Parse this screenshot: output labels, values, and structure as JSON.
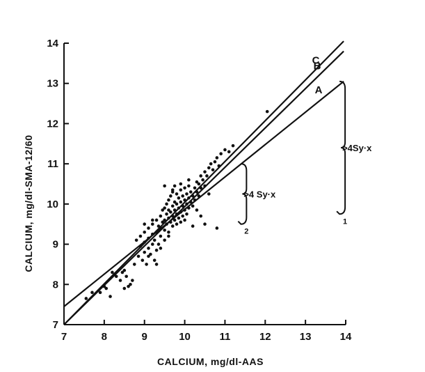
{
  "chart_data": {
    "type": "scatter",
    "title": "",
    "xlabel": "CALCIUM, mg/dl-AAS",
    "ylabel": "CALCIUM,  mg/dl-SMA-12/60",
    "xlim": [
      7,
      14
    ],
    "ylim": [
      7,
      14
    ],
    "xticks": [
      7,
      8,
      9,
      10,
      11,
      12,
      13,
      14
    ],
    "yticks": [
      7,
      8,
      9,
      10,
      11,
      12,
      13,
      14
    ],
    "grid": false,
    "colors": {
      "ink": "#111111",
      "background": "#ffffff"
    },
    "lines": [
      {
        "name": "A",
        "x": [
          7,
          13.95
        ],
        "y": [
          7.45,
          13.05
        ]
      },
      {
        "name": "B",
        "x": [
          7,
          13.95
        ],
        "y": [
          7.0,
          13.8
        ]
      },
      {
        "name": "C",
        "x": [
          7,
          13.95
        ],
        "y": [
          7.0,
          14.05
        ]
      }
    ],
    "annotations": [
      {
        "text": ">4 Sy·x",
        "subscript": "2",
        "x": 11.5,
        "y_top": 11.0,
        "y_bottom": 9.5
      },
      {
        "text": ">4Sy·x",
        "subscript": "1",
        "x": 13.95,
        "y_top": 13.05,
        "y_bottom": 9.75
      }
    ],
    "points": [
      [
        7.55,
        7.65
      ],
      [
        7.7,
        7.8
      ],
      [
        7.9,
        7.8
      ],
      [
        8.0,
        7.95
      ],
      [
        8.05,
        7.9
      ],
      [
        8.15,
        7.7
      ],
      [
        8.2,
        8.3
      ],
      [
        8.3,
        8.2
      ],
      [
        8.4,
        8.1
      ],
      [
        8.45,
        8.3
      ],
      [
        8.5,
        7.9
      ],
      [
        8.55,
        8.2
      ],
      [
        8.6,
        7.95
      ],
      [
        8.65,
        8.0
      ],
      [
        8.7,
        8.1
      ],
      [
        8.5,
        8.35
      ],
      [
        8.75,
        8.5
      ],
      [
        8.8,
        9.1
      ],
      [
        8.85,
        8.7
      ],
      [
        8.9,
        8.95
      ],
      [
        8.9,
        9.2
      ],
      [
        8.95,
        8.6
      ],
      [
        9.0,
        8.8
      ],
      [
        9.0,
        9.05
      ],
      [
        9.0,
        9.3
      ],
      [
        9.05,
        8.5
      ],
      [
        9.1,
        8.9
      ],
      [
        9.1,
        9.15
      ],
      [
        9.1,
        9.4
      ],
      [
        9.15,
        8.75
      ],
      [
        9.2,
        9.0
      ],
      [
        9.2,
        9.25
      ],
      [
        9.2,
        9.5
      ],
      [
        9.25,
        8.6
      ],
      [
        9.25,
        9.1
      ],
      [
        9.3,
        9.3
      ],
      [
        9.3,
        9.6
      ],
      [
        9.3,
        8.85
      ],
      [
        9.35,
        9.45
      ],
      [
        9.35,
        9.0
      ],
      [
        9.4,
        9.2
      ],
      [
        9.4,
        9.7
      ],
      [
        9.4,
        9.4
      ],
      [
        9.45,
        9.55
      ],
      [
        9.45,
        9.85
      ],
      [
        9.5,
        9.35
      ],
      [
        9.5,
        9.6
      ],
      [
        9.5,
        9.9
      ],
      [
        9.5,
        9.1
      ],
      [
        9.55,
        9.75
      ],
      [
        9.55,
        10.0
      ],
      [
        9.55,
        9.5
      ],
      [
        9.6,
        9.65
      ],
      [
        9.6,
        9.85
      ],
      [
        9.6,
        10.1
      ],
      [
        9.6,
        9.3
      ],
      [
        9.65,
        9.55
      ],
      [
        9.65,
        9.8
      ],
      [
        9.65,
        10.2
      ],
      [
        9.7,
        9.7
      ],
      [
        9.7,
        9.95
      ],
      [
        9.7,
        9.45
      ],
      [
        9.7,
        10.3
      ],
      [
        9.75,
        9.6
      ],
      [
        9.75,
        9.85
      ],
      [
        9.75,
        10.05
      ],
      [
        9.8,
        9.75
      ],
      [
        9.8,
        10.0
      ],
      [
        9.8,
        9.5
      ],
      [
        9.8,
        10.25
      ],
      [
        9.85,
        9.9
      ],
      [
        9.85,
        10.15
      ],
      [
        9.85,
        9.65
      ],
      [
        9.9,
        9.8
      ],
      [
        9.9,
        10.05
      ],
      [
        9.9,
        10.35
      ],
      [
        9.9,
        9.55
      ],
      [
        9.95,
        9.95
      ],
      [
        9.95,
        10.2
      ],
      [
        9.95,
        9.7
      ],
      [
        10.0,
        9.85
      ],
      [
        10.0,
        10.1
      ],
      [
        10.0,
        10.4
      ],
      [
        10.0,
        9.6
      ],
      [
        10.05,
        10.0
      ],
      [
        10.05,
        10.25
      ],
      [
        10.05,
        9.75
      ],
      [
        10.1,
        10.15
      ],
      [
        10.1,
        9.9
      ],
      [
        10.1,
        10.45
      ],
      [
        10.15,
        10.05
      ],
      [
        10.15,
        10.3
      ],
      [
        10.2,
        10.2
      ],
      [
        10.2,
        9.95
      ],
      [
        10.25,
        10.4
      ],
      [
        10.25,
        10.1
      ],
      [
        10.3,
        10.3
      ],
      [
        10.3,
        10.55
      ],
      [
        10.35,
        10.5
      ],
      [
        10.35,
        10.2
      ],
      [
        10.4,
        10.7
      ],
      [
        10.4,
        10.4
      ],
      [
        10.45,
        10.6
      ],
      [
        10.5,
        10.8
      ],
      [
        10.5,
        10.45
      ],
      [
        10.55,
        10.7
      ],
      [
        10.6,
        10.9
      ],
      [
        10.65,
        11.0
      ],
      [
        10.7,
        10.85
      ],
      [
        10.75,
        11.05
      ],
      [
        10.8,
        11.15
      ],
      [
        10.85,
        10.95
      ],
      [
        10.9,
        11.25
      ],
      [
        11.0,
        11.35
      ],
      [
        11.1,
        11.3
      ],
      [
        11.2,
        11.45
      ],
      [
        9.5,
        10.45
      ],
      [
        9.7,
        10.35
      ],
      [
        10.8,
        9.4
      ],
      [
        10.4,
        9.7
      ],
      [
        10.5,
        9.5
      ],
      [
        10.2,
        9.45
      ],
      [
        9.3,
        8.5
      ],
      [
        9.1,
        8.7
      ],
      [
        12.05,
        12.3
      ],
      [
        9.0,
        9.5
      ],
      [
        9.2,
        9.6
      ],
      [
        9.6,
        9.2
      ],
      [
        9.4,
        8.9
      ],
      [
        9.9,
        10.5
      ],
      [
        10.1,
        10.6
      ],
      [
        9.75,
        10.45
      ],
      [
        10.3,
        9.85
      ],
      [
        10.6,
        10.25
      ]
    ]
  }
}
